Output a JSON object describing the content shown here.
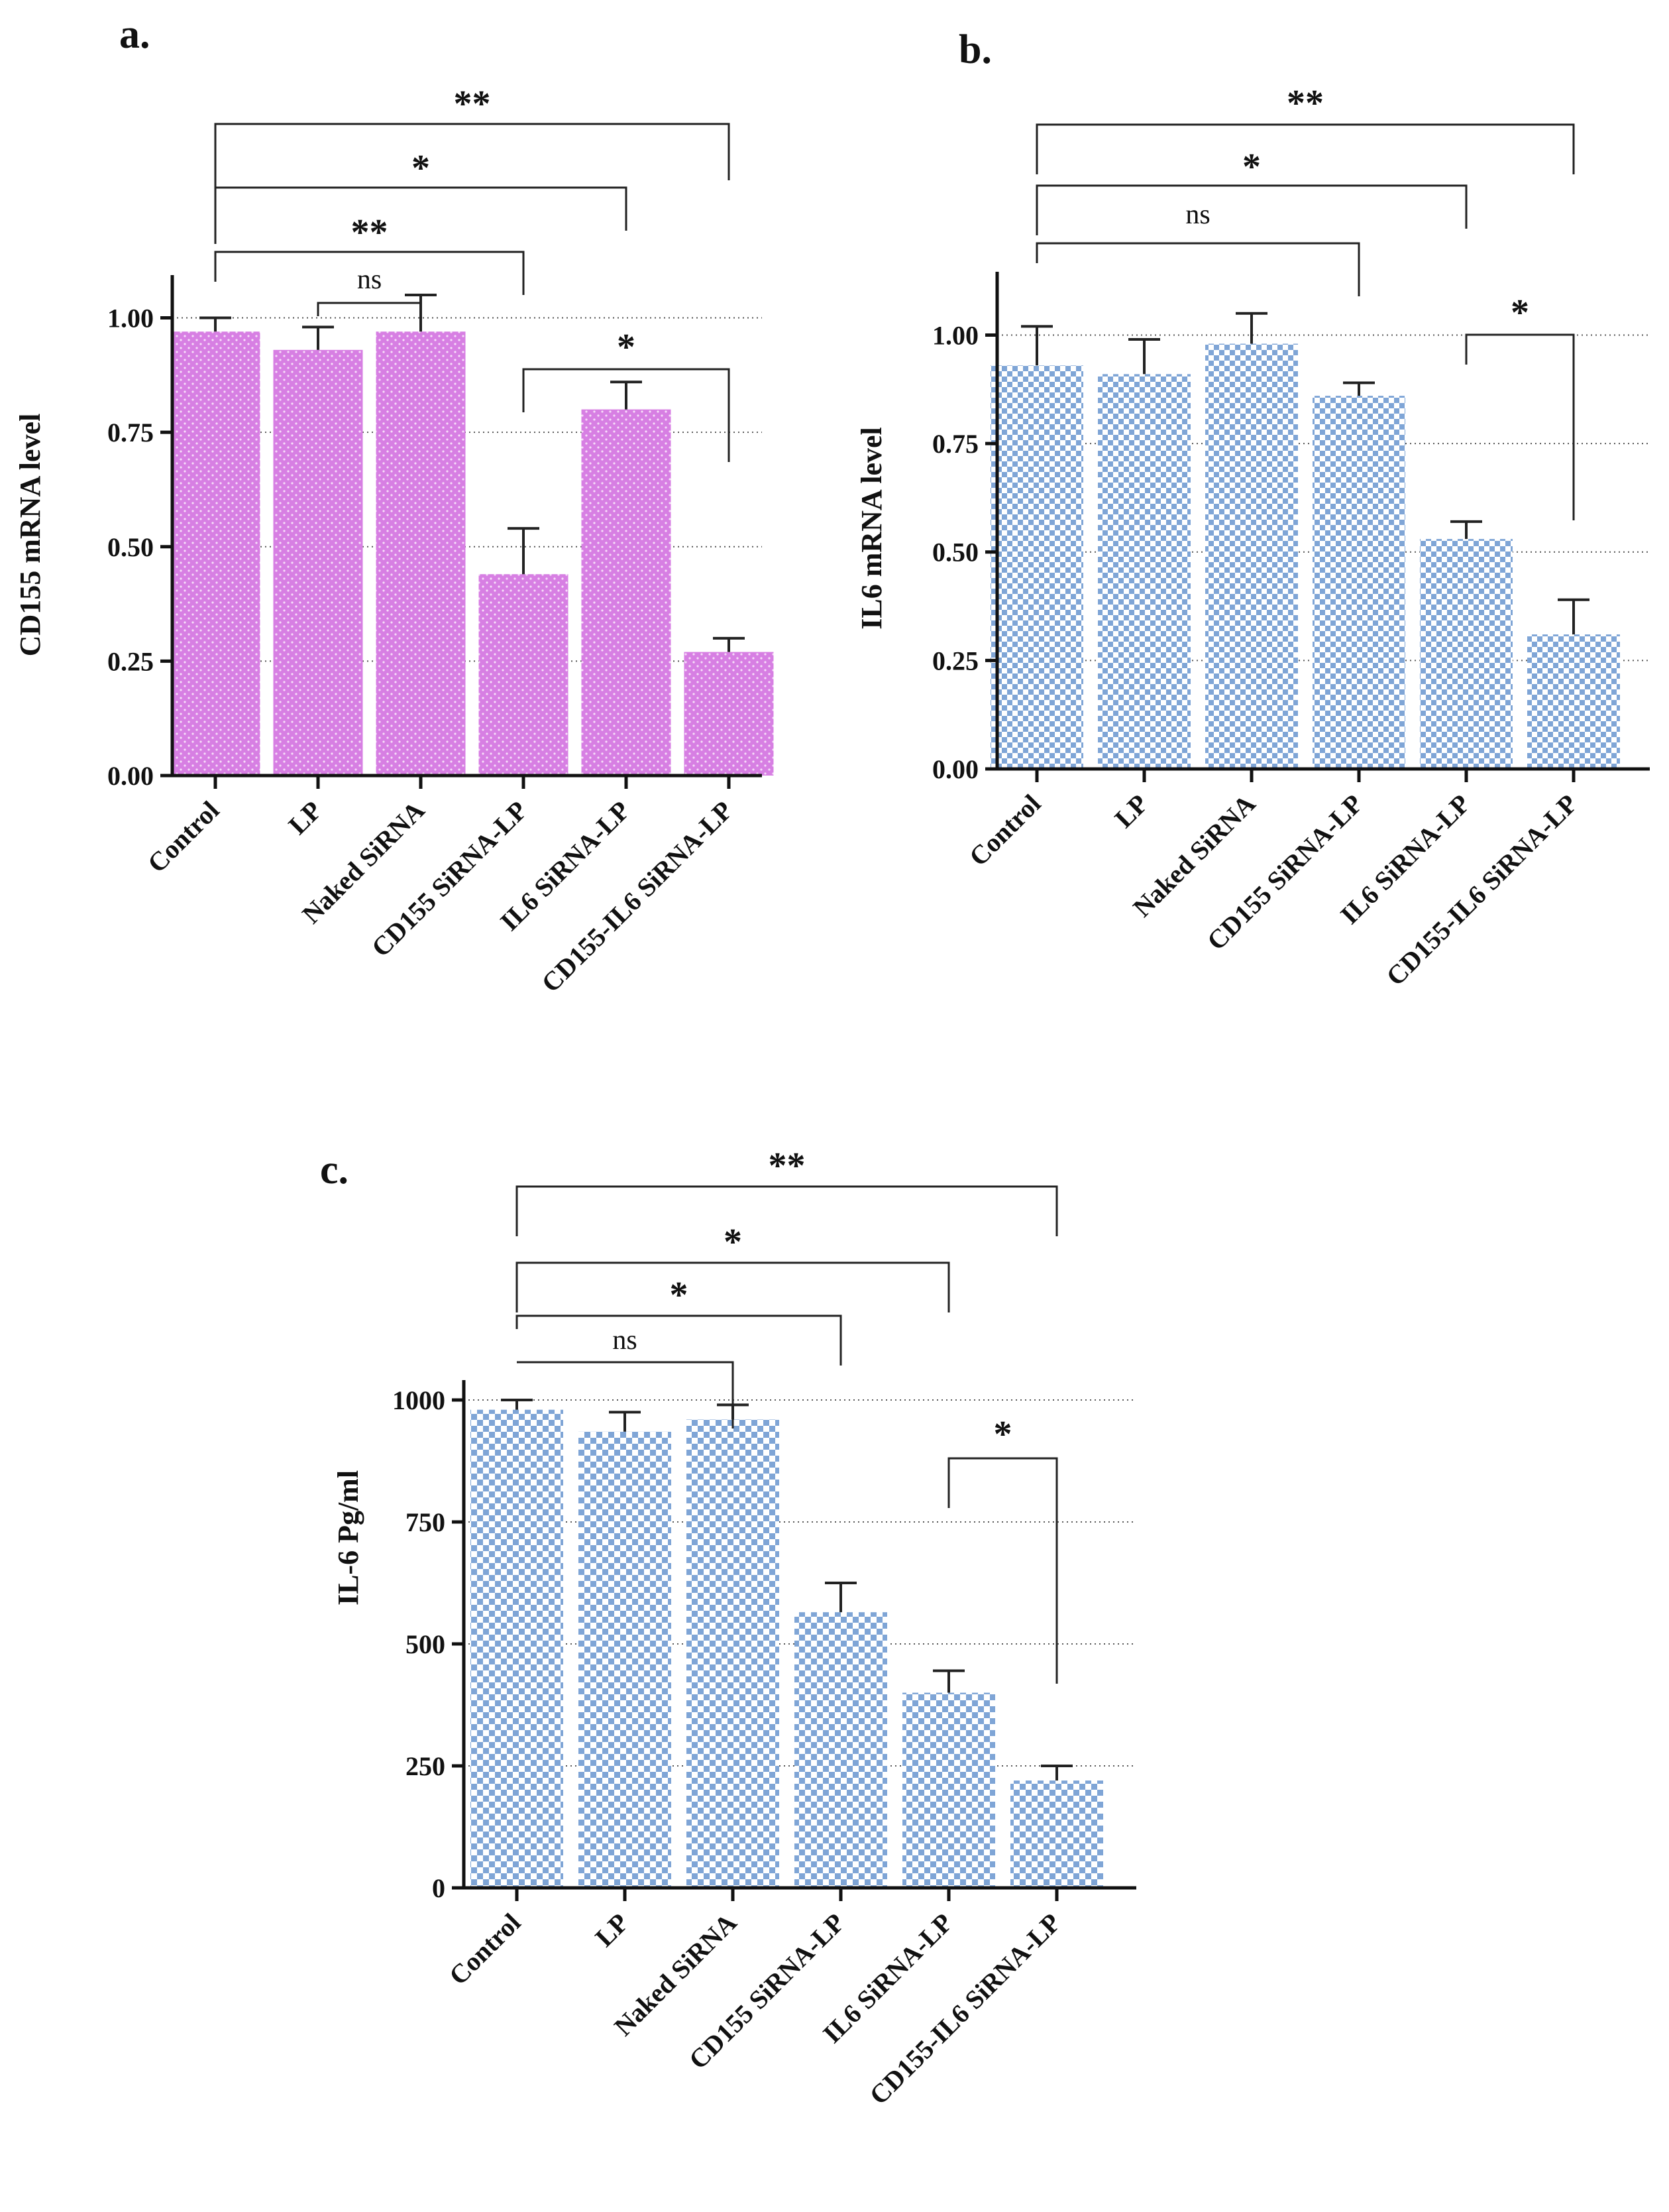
{
  "chart_data": [
    {
      "panel": "a.",
      "type": "bar",
      "title": "",
      "xlabel": "",
      "ylabel": "CD155 mRNA level",
      "ylim": [
        0,
        1.05
      ],
      "yticks": [
        "0.00",
        "0.25",
        "0.50",
        "0.75",
        "1.00"
      ],
      "ytick_values": [
        0,
        0.25,
        0.5,
        0.75,
        1.0
      ],
      "grid": "horizontal dotted at y ticks",
      "color": "#d77fe3",
      "pattern": "dotted",
      "categories": [
        "Control",
        "LP",
        "Naked SiRNA",
        "CD155 SiRNA-LP",
        "IL6 SiRNA-LP",
        "CD155-IL6 SiRNA-LP"
      ],
      "values": [
        0.97,
        0.93,
        0.97,
        0.44,
        0.8,
        0.27
      ],
      "errors": [
        0.03,
        0.05,
        0.08,
        0.1,
        0.06,
        0.03
      ],
      "significance": [
        {
          "from": "Control",
          "to": "CD155-IL6 SiRNA-LP",
          "label": "**"
        },
        {
          "from": "Control",
          "to": "IL6 SiRNA-LP",
          "label": "*"
        },
        {
          "from": "Control",
          "to": "CD155 SiRNA-LP",
          "label": "**"
        },
        {
          "from": "LP",
          "to": "Naked SiRNA",
          "label": "ns"
        },
        {
          "from": "CD155 SiRNA-LP",
          "to": "CD155-IL6 SiRNA-LP",
          "label": "*"
        }
      ]
    },
    {
      "panel": "b.",
      "type": "bar",
      "title": "",
      "xlabel": "",
      "ylabel": "IL6 mRNA level",
      "ylim": [
        0,
        1.1
      ],
      "yticks": [
        "0.00",
        "0.25",
        "0.50",
        "0.75",
        "1.00"
      ],
      "ytick_values": [
        0,
        0.25,
        0.5,
        0.75,
        1.0
      ],
      "grid": "horizontal dotted at y ticks",
      "color": "#7fa5d6",
      "pattern": "checkerboard",
      "categories": [
        "Control",
        "LP",
        "Naked SiRNA",
        "CD155 SiRNA-LP",
        "IL6 SiRNA-LP",
        "CD155-IL6 SiRNA-LP"
      ],
      "values": [
        0.93,
        0.91,
        0.98,
        0.86,
        0.53,
        0.31
      ],
      "errors": [
        0.09,
        0.08,
        0.07,
        0.03,
        0.04,
        0.08
      ],
      "significance": [
        {
          "from": "Control",
          "to": "CD155-IL6 SiRNA-LP",
          "label": "**"
        },
        {
          "from": "Control",
          "to": "IL6 SiRNA-LP",
          "label": "*"
        },
        {
          "from": "Control",
          "to": "CD155 SiRNA-LP",
          "label": "ns"
        },
        {
          "from": "IL6 SiRNA-LP",
          "to": "CD155-IL6 SiRNA-LP",
          "label": "*"
        }
      ]
    },
    {
      "panel": "c.",
      "type": "bar",
      "title": "",
      "xlabel": "",
      "ylabel": "IL-6 Pg/ml",
      "ylim": [
        0,
        1000
      ],
      "yticks": [
        "0",
        "250",
        "500",
        "750",
        "1000"
      ],
      "ytick_values": [
        0,
        250,
        500,
        750,
        1000
      ],
      "grid": "horizontal dotted at y ticks",
      "color": "#7fa5d6",
      "pattern": "checkerboard",
      "categories": [
        "Control",
        "LP",
        "Naked SiRNA",
        "CD155 SiRNA-LP",
        "IL6 SiRNA-LP",
        "CD155-IL6 SiRNA-LP"
      ],
      "values": [
        980,
        935,
        960,
        565,
        400,
        220
      ],
      "errors": [
        20,
        40,
        30,
        60,
        45,
        30
      ],
      "significance": [
        {
          "from": "Control",
          "to": "CD155-IL6 SiRNA-LP",
          "label": "**"
        },
        {
          "from": "Control",
          "to": "IL6 SiRNA-LP",
          "label": "*"
        },
        {
          "from": "Control",
          "to": "CD155 SiRNA-LP",
          "label": "*"
        },
        {
          "from": "Control",
          "to": "Naked SiRNA",
          "label": "ns"
        },
        {
          "from": "IL6 SiRNA-LP",
          "to": "CD155-IL6 SiRNA-LP",
          "label": "*"
        }
      ]
    }
  ]
}
